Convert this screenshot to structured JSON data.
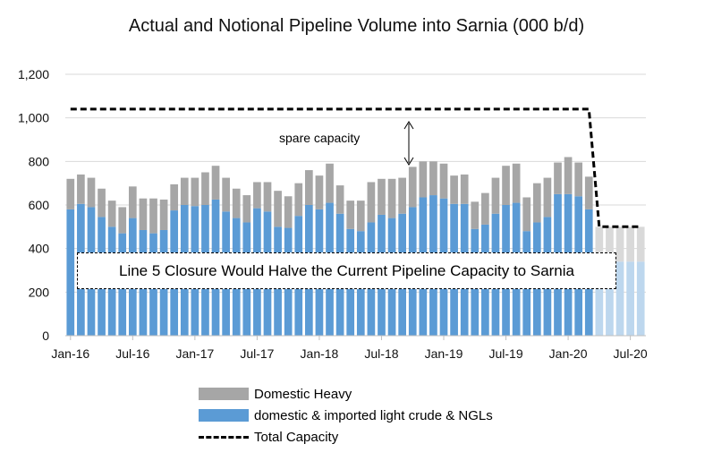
{
  "chart_data": {
    "type": "bar",
    "title": "Actual and Notional Pipeline Volume into Sarnia (000 b/d)",
    "ylim": [
      0,
      1200
    ],
    "yticks": [
      "0",
      "200",
      "400",
      "600",
      "800",
      "1,000",
      "1,200"
    ],
    "xtick_labels": [
      "Jan-16",
      "Jul-16",
      "Jan-17",
      "Jul-17",
      "Jan-18",
      "Jul-18",
      "Jan-19",
      "Jul-19",
      "Jan-20",
      "Jul-20"
    ],
    "months": [
      "2016-01",
      "2016-02",
      "2016-03",
      "2016-04",
      "2016-05",
      "2016-06",
      "2016-07",
      "2016-08",
      "2016-09",
      "2016-10",
      "2016-11",
      "2016-12",
      "2017-01",
      "2017-02",
      "2017-03",
      "2017-04",
      "2017-05",
      "2017-06",
      "2017-07",
      "2017-08",
      "2017-09",
      "2017-10",
      "2017-11",
      "2017-12",
      "2018-01",
      "2018-02",
      "2018-03",
      "2018-04",
      "2018-05",
      "2018-06",
      "2018-07",
      "2018-08",
      "2018-09",
      "2018-10",
      "2018-11",
      "2018-12",
      "2019-01",
      "2019-02",
      "2019-03",
      "2019-04",
      "2019-05",
      "2019-06",
      "2019-07",
      "2019-08",
      "2019-09",
      "2019-10",
      "2019-11",
      "2019-12",
      "2020-01",
      "2020-02",
      "2020-03",
      "2020-04",
      "2020-05",
      "2020-06",
      "2020-07",
      "2020-08"
    ],
    "series": [
      {
        "name": "domestic & imported light crude & NGLs",
        "color": "#5b9bd5",
        "values": [
          580,
          605,
          590,
          545,
          500,
          470,
          540,
          485,
          470,
          485,
          575,
          600,
          595,
          600,
          625,
          570,
          540,
          520,
          585,
          570,
          500,
          495,
          550,
          600,
          580,
          610,
          560,
          490,
          480,
          520,
          555,
          540,
          560,
          590,
          635,
          645,
          630,
          605,
          605,
          490,
          510,
          560,
          600,
          610,
          480,
          520,
          545,
          650,
          650,
          640,
          580
        ]
      },
      {
        "name": "Domestic Heavy",
        "color": "#a6a6a6",
        "values": [
          140,
          135,
          135,
          130,
          120,
          120,
          145,
          145,
          160,
          140,
          120,
          125,
          130,
          150,
          155,
          155,
          135,
          125,
          120,
          135,
          165,
          145,
          150,
          160,
          155,
          180,
          130,
          130,
          140,
          185,
          165,
          180,
          165,
          185,
          165,
          155,
          160,
          130,
          135,
          125,
          145,
          165,
          180,
          180,
          155,
          180,
          180,
          145,
          170,
          155,
          150
        ]
      },
      {
        "name": "Total Capacity",
        "color": "#000000",
        "style": "dashed",
        "values": [
          1040,
          1040,
          1040,
          1040,
          1040,
          1040,
          1040,
          1040,
          1040,
          1040,
          1040,
          1040,
          1040,
          1040,
          1040,
          1040,
          1040,
          1040,
          1040,
          1040,
          1040,
          1040,
          1040,
          1040,
          1040,
          1040,
          1040,
          1040,
          1040,
          1040,
          1040,
          1040,
          1040,
          1040,
          1040,
          1040,
          1040,
          1040,
          1040,
          1040,
          1040,
          1040,
          1040,
          1040,
          1040,
          1040,
          1040,
          1040,
          1040,
          1040,
          1040,
          500,
          500,
          500,
          500,
          500
        ]
      }
    ],
    "notional_light": [
      340,
      340,
      340,
      340,
      340
    ],
    "notional_heavy": [
      160,
      160,
      160,
      160,
      160
    ],
    "notional_colors": {
      "light": "#bdd7ee",
      "heavy": "#d9d9d9"
    },
    "legend_position": "bottom",
    "grid": true
  },
  "annotations": {
    "callout": "Line 5 Closure Would Halve the Current Pipeline Capacity to Sarnia",
    "spare": "spare capacity"
  },
  "legend": {
    "heavy": "Domestic Heavy",
    "light": "domestic & imported light crude & NGLs",
    "capacity": "Total Capacity"
  }
}
